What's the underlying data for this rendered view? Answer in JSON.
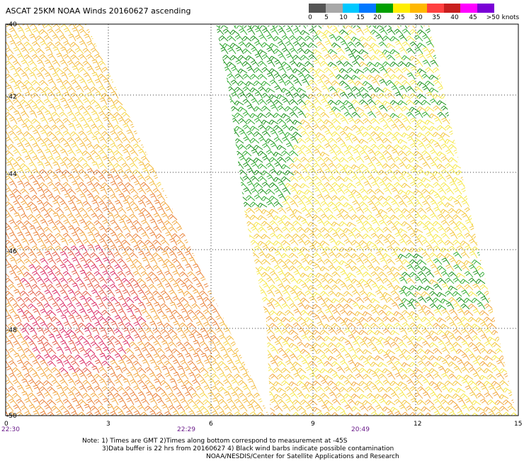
{
  "title": "ASCAT 25KM NOAA Winds 20160627 ascending",
  "colorbar": {
    "labels": [
      "0",
      "5",
      "10",
      "15",
      "20",
      "25",
      "30",
      "35",
      "40",
      "45",
      ">50 knots"
    ],
    "colors": [
      "#555555",
      "#a8a8a8",
      "#00c8ff",
      "#0078ff",
      "#00a000",
      "#ffee00",
      "#ffb800",
      "#ff4040",
      "#c81e1e",
      "#ff00ff",
      "#7a00d6"
    ]
  },
  "y_axis": {
    "labels": [
      "-40",
      "-42",
      "-44",
      "-46",
      "-48",
      "-50"
    ]
  },
  "x_axis": {
    "labels": [
      "0",
      "3",
      "6",
      "9",
      "12",
      "15"
    ]
  },
  "time_labels": [
    "22:30",
    "22:29",
    "20:49"
  ],
  "notes": {
    "line1": "Note: 1) Times are GMT 2)Times along bottom correspond to measurement at -45S",
    "line2": "3)Data buffer is 22 hrs from 20160627 4) Black wind barbs indicate possible contamination",
    "line3": "NOAA/NESDIS/Center for Satellite Applications and Research"
  }
}
